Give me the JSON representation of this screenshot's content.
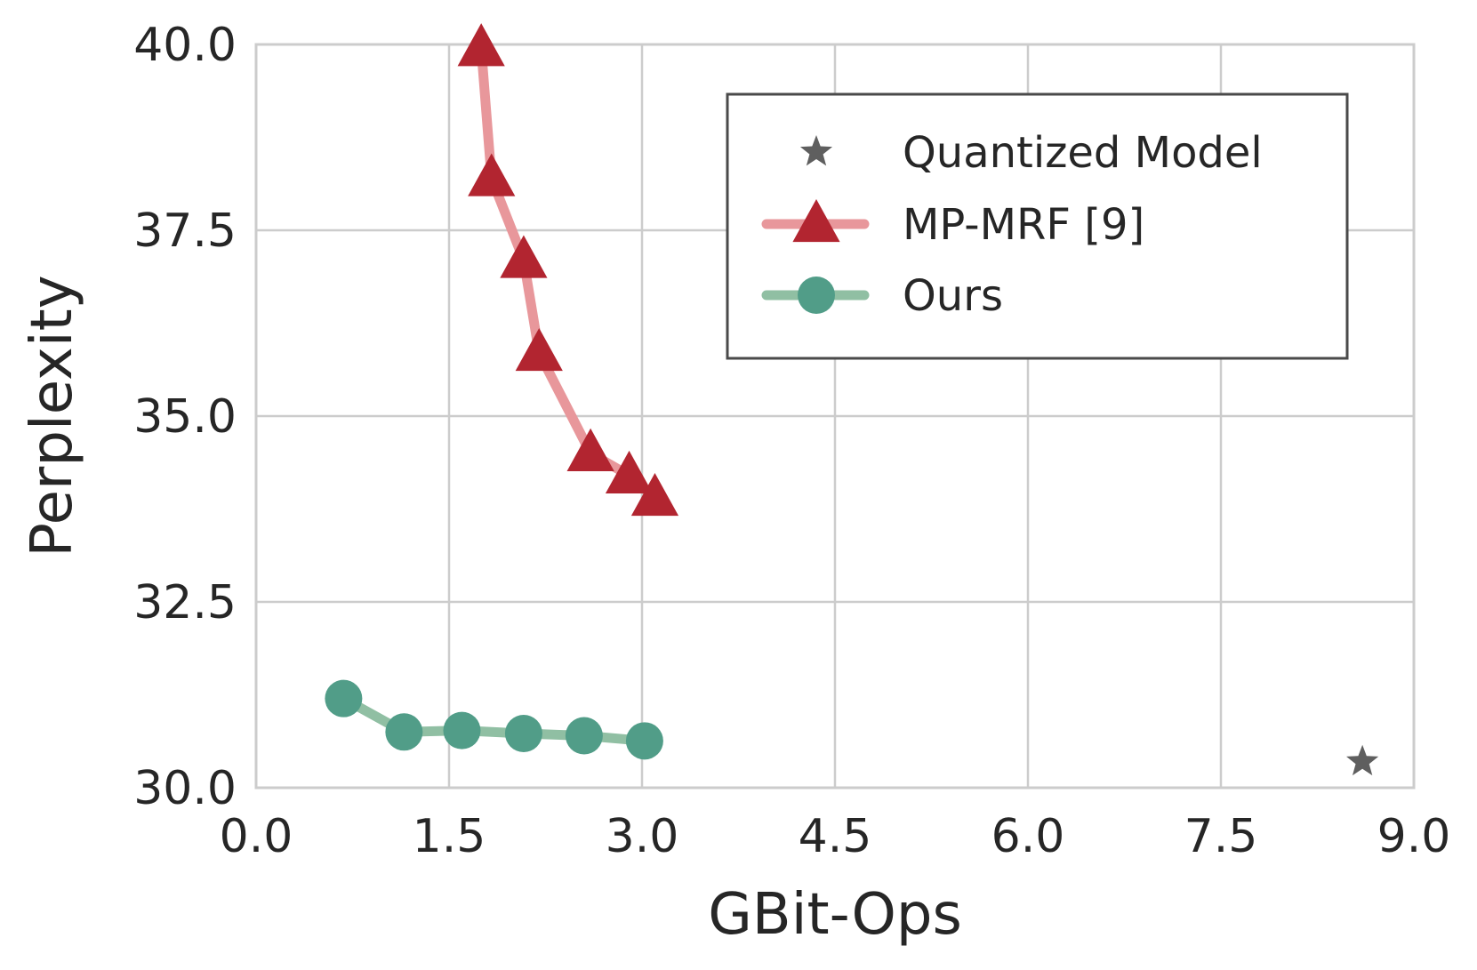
{
  "chart_data": {
    "type": "line",
    "title": "",
    "xlabel": "GBit-Ops",
    "ylabel": "Perplexity",
    "xlim": [
      0.0,
      9.0
    ],
    "ylim": [
      30.0,
      40.0
    ],
    "xticks": [
      "0.0",
      "1.5",
      "3.0",
      "4.5",
      "6.0",
      "7.5",
      "9.0"
    ],
    "yticks": [
      "30.0",
      "32.5",
      "35.0",
      "37.5",
      "40.0"
    ],
    "grid": true,
    "legend_position": "top-right",
    "series": [
      {
        "name": "Quantized Model",
        "marker": "star",
        "line": false,
        "color": "#5f5f5f",
        "points": [
          [
            8.6,
            30.35
          ]
        ]
      },
      {
        "name": "MP-MRF [9]",
        "marker": "triangle",
        "line": true,
        "line_color": "#e8979b",
        "color": "#b22530",
        "points": [
          [
            1.75,
            39.95
          ],
          [
            1.83,
            38.2
          ],
          [
            2.08,
            37.1
          ],
          [
            2.2,
            35.85
          ],
          [
            2.6,
            34.5
          ],
          [
            2.9,
            34.2
          ],
          [
            3.1,
            33.9
          ]
        ]
      },
      {
        "name": "Ours",
        "marker": "circle",
        "line": true,
        "line_color": "#90bfa3",
        "color": "#519d88",
        "points": [
          [
            0.68,
            31.2
          ],
          [
            1.15,
            30.75
          ],
          [
            1.6,
            30.77
          ],
          [
            2.08,
            30.73
          ],
          [
            2.55,
            30.7
          ],
          [
            3.02,
            30.63
          ]
        ]
      }
    ]
  }
}
